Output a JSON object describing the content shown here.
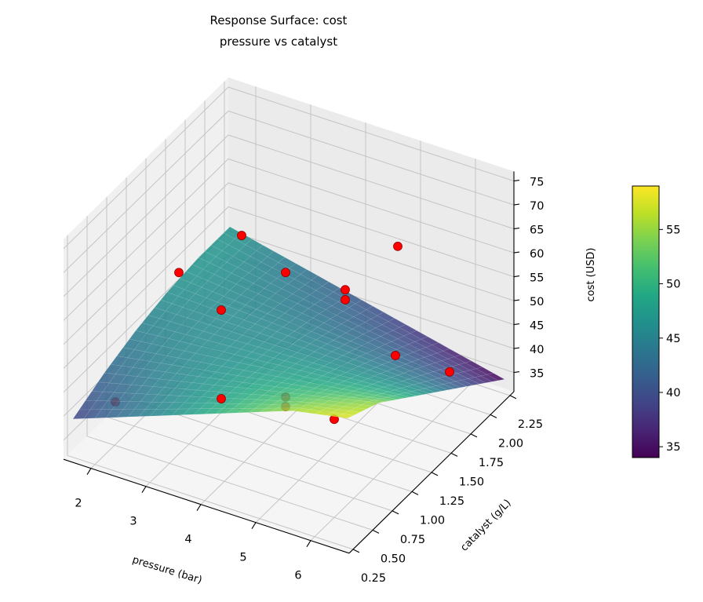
{
  "chart_data": {
    "type": "surface3d",
    "title": [
      "Response Surface: cost",
      "pressure vs catalyst"
    ],
    "xlabel": "pressure (bar)",
    "ylabel": "catalyst (g/L)",
    "zlabel": "cost (USD)",
    "xlim": [
      1.5,
      6.7
    ],
    "ylim": [
      0.2,
      2.3
    ],
    "zlim": [
      31,
      77
    ],
    "xticks": [
      "2",
      "3",
      "4",
      "5",
      "6"
    ],
    "yticks": [
      "0.25",
      "0.50",
      "0.75",
      "1.00",
      "1.25",
      "1.50",
      "1.75",
      "2.00",
      "2.25"
    ],
    "zticks": [
      "35",
      "40",
      "45",
      "50",
      "55",
      "60",
      "65",
      "70",
      "75"
    ],
    "grid": true,
    "colormap": "viridis",
    "colorbar": {
      "range": [
        34,
        59
      ],
      "ticks": [
        "35",
        "40",
        "45",
        "50",
        "55"
      ]
    },
    "surface": {
      "pressure": [
        1.6,
        2.6,
        3.6,
        4.6,
        5.6,
        6.6
      ],
      "catalyst": [
        0.25,
        0.65,
        1.05,
        1.45,
        1.85,
        2.25
      ],
      "cost": [
        [
          39.0,
          42.2,
          44.6,
          46.2,
          47.0,
          47.0
        ],
        [
          43.2,
          44.7,
          45.6,
          45.8,
          45.4,
          44.4
        ],
        [
          47.4,
          47.2,
          46.6,
          45.5,
          43.9,
          41.8
        ],
        [
          51.6,
          49.8,
          47.6,
          45.1,
          42.3,
          39.2
        ],
        [
          55.8,
          52.3,
          48.6,
          44.8,
          40.8,
          36.6
        ],
        [
          58.0,
          54.8,
          49.6,
          44.4,
          39.2,
          34.0
        ]
      ]
    },
    "points": {
      "color": "#ff0000",
      "pressure": [
        3,
        2,
        4,
        5,
        5,
        5,
        6,
        6.5,
        6,
        3,
        2,
        4,
        5,
        5
      ],
      "catalyst": [
        1.42,
        1.32,
        1.28,
        2.01,
        1.34,
        1.34,
        1.28,
        1.62,
        0.5,
        1.16,
        0.51,
        0.46,
        0.58,
        0.58
      ],
      "cost": [
        63.8,
        53.9,
        62.1,
        59.6,
        61.3,
        59.2,
        52.3,
        45.3,
        51.5,
        52.4,
        39.9,
        48.9,
        51.1,
        49.1
      ]
    }
  }
}
